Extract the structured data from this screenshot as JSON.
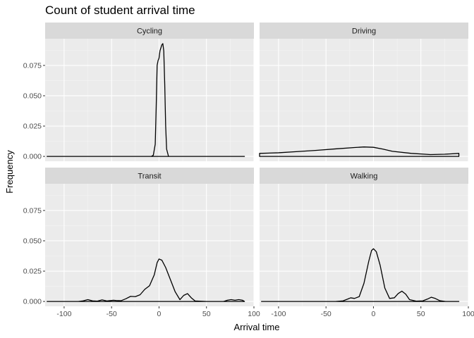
{
  "chart_data": {
    "type": "area",
    "title": "Count of student arrival time",
    "xlabel": "Arrival time",
    "ylabel": "Frequency",
    "xlim": [
      -120,
      100
    ],
    "ylim": [
      -0.004,
      0.097
    ],
    "x_ticks": [
      -100,
      -50,
      0,
      50,
      100
    ],
    "x_tick_labels": [
      "-100",
      "-50",
      "0",
      "50",
      "100"
    ],
    "y_ticks": [
      0,
      0.025,
      0.05,
      0.075
    ],
    "y_tick_labels": [
      "0.000",
      "0.025",
      "0.050",
      "0.075"
    ],
    "grid": true,
    "legend": "none",
    "facets": [
      {
        "name": "Cycling",
        "points": [
          [
            -118,
            0
          ],
          [
            -20,
            0
          ],
          [
            -8,
            0
          ],
          [
            -6,
            0.001
          ],
          [
            -4,
            0.01
          ],
          [
            -3,
            0.04
          ],
          [
            -2,
            0.075
          ],
          [
            -1,
            0.079
          ],
          [
            0,
            0.081
          ],
          [
            1,
            0.087
          ],
          [
            3,
            0.092
          ],
          [
            4,
            0.093
          ],
          [
            5,
            0.087
          ],
          [
            6,
            0.06
          ],
          [
            7,
            0.025
          ],
          [
            8,
            0.006
          ],
          [
            10,
            0
          ],
          [
            90,
            0
          ]
        ]
      },
      {
        "name": "Driving",
        "points": [
          [
            -120,
            0.0025
          ],
          [
            -100,
            0.003
          ],
          [
            -80,
            0.004
          ],
          [
            -60,
            0.005
          ],
          [
            -40,
            0.0062
          ],
          [
            -20,
            0.0073
          ],
          [
            -10,
            0.0078
          ],
          [
            0,
            0.0075
          ],
          [
            10,
            0.006
          ],
          [
            20,
            0.0042
          ],
          [
            40,
            0.0025
          ],
          [
            60,
            0.0015
          ],
          [
            75,
            0.0018
          ],
          [
            90,
            0.0025
          ]
        ]
      },
      {
        "name": "Transit",
        "points": [
          [
            -118,
            0
          ],
          [
            -85,
            0
          ],
          [
            -80,
            0.0005
          ],
          [
            -75,
            0.0015
          ],
          [
            -70,
            0.0005
          ],
          [
            -65,
            0.0003
          ],
          [
            -60,
            0.0013
          ],
          [
            -55,
            0.0004
          ],
          [
            -48,
            0.001
          ],
          [
            -45,
            0.0008
          ],
          [
            -40,
            0.0006
          ],
          [
            -35,
            0.0022
          ],
          [
            -30,
            0.0042
          ],
          [
            -25,
            0.004
          ],
          [
            -20,
            0.0055
          ],
          [
            -15,
            0.01
          ],
          [
            -10,
            0.013
          ],
          [
            -5,
            0.022
          ],
          [
            -2,
            0.032
          ],
          [
            0,
            0.035
          ],
          [
            3,
            0.034
          ],
          [
            7,
            0.028
          ],
          [
            12,
            0.018
          ],
          [
            17,
            0.008
          ],
          [
            22,
            0.0015
          ],
          [
            26,
            0.005
          ],
          [
            30,
            0.0065
          ],
          [
            34,
            0.003
          ],
          [
            38,
            0.0004
          ],
          [
            50,
            0
          ],
          [
            68,
            0
          ],
          [
            72,
            0.001
          ],
          [
            76,
            0.0015
          ],
          [
            80,
            0.001
          ],
          [
            84,
            0.0015
          ],
          [
            88,
            0.001
          ],
          [
            90,
            0
          ]
        ]
      },
      {
        "name": "Walking",
        "points": [
          [
            -118,
            0
          ],
          [
            -40,
            0
          ],
          [
            -32,
            0.0005
          ],
          [
            -27,
            0.002
          ],
          [
            -24,
            0.003
          ],
          [
            -20,
            0.0025
          ],
          [
            -15,
            0.004
          ],
          [
            -10,
            0.015
          ],
          [
            -5,
            0.033
          ],
          [
            -2,
            0.042
          ],
          [
            0,
            0.0435
          ],
          [
            3,
            0.041
          ],
          [
            7,
            0.03
          ],
          [
            12,
            0.011
          ],
          [
            17,
            0.0025
          ],
          [
            22,
            0.003
          ],
          [
            26,
            0.0065
          ],
          [
            30,
            0.0085
          ],
          [
            34,
            0.006
          ],
          [
            38,
            0.0015
          ],
          [
            45,
            0.0003
          ],
          [
            52,
            0.0005
          ],
          [
            57,
            0.002
          ],
          [
            61,
            0.0035
          ],
          [
            65,
            0.0025
          ],
          [
            70,
            0.0006
          ],
          [
            76,
            0
          ],
          [
            90,
            0
          ]
        ]
      }
    ]
  }
}
